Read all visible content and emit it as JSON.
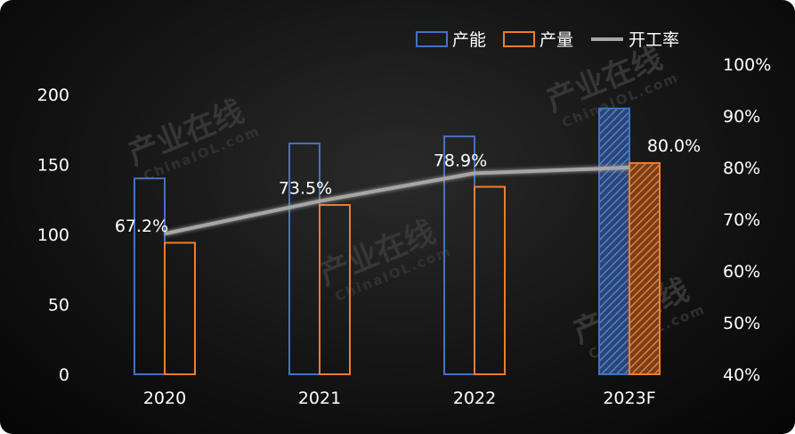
{
  "chart_data": {
    "type": "bar",
    "categories": [
      "2020",
      "2021",
      "2022",
      "2023F"
    ],
    "series": [
      {
        "name": "产能",
        "kind": "bar",
        "axis": "left",
        "color": "#4472c4",
        "values": [
          140,
          165,
          170,
          190
        ]
      },
      {
        "name": "产量",
        "kind": "bar",
        "axis": "left",
        "color": "#ed7d31",
        "values": [
          94,
          121,
          134,
          151
        ]
      },
      {
        "name": "开工率",
        "kind": "line",
        "axis": "right",
        "color": "#a6a6a6",
        "values": [
          67.2,
          73.5,
          78.9,
          80.0
        ],
        "labels": [
          "67.2%",
          "73.5%",
          "78.9%",
          "80.0%"
        ]
      }
    ],
    "forecast_category": "2023F",
    "y_left": {
      "min": 0,
      "max": 200,
      "ticks": [
        "0",
        "50",
        "100",
        "150",
        "200"
      ]
    },
    "y_right": {
      "min": 40,
      "max": 100,
      "ticks": [
        "40%",
        "50%",
        "60%",
        "70%",
        "80%",
        "90%",
        "100%"
      ]
    },
    "legend_position": "top-right",
    "grid": false
  },
  "watermark": {
    "text": "产业在线",
    "sub": "ChinaIOL.com"
  }
}
